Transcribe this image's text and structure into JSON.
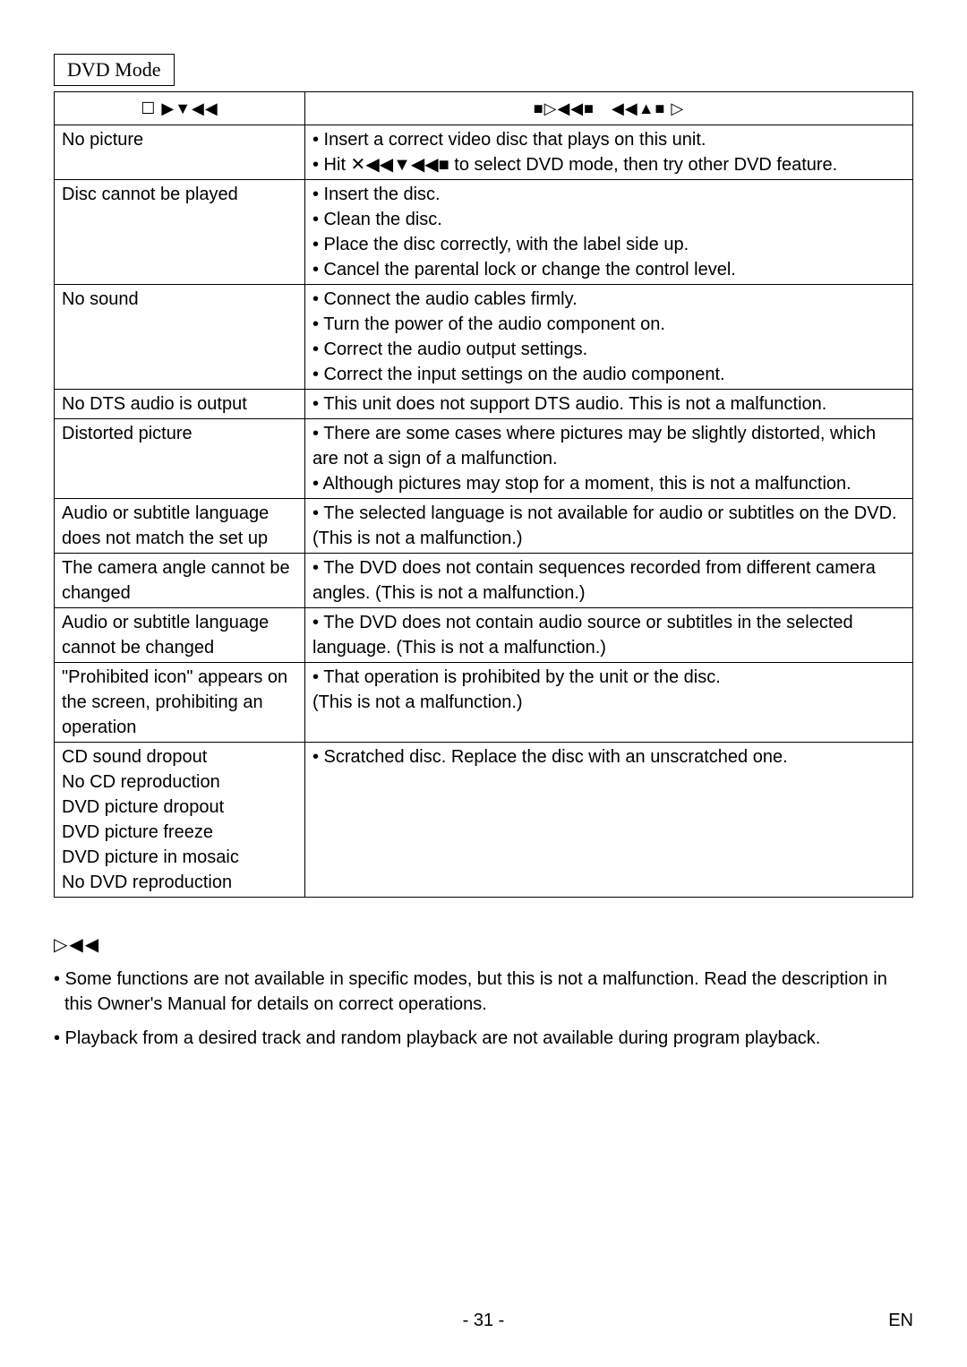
{
  "page": {
    "mode_label": "DVD Mode",
    "table": {
      "headers": {
        "symptom_symbols": "☐ ▶▼◀◀",
        "remedy_symbols": "■▷◀◀■　◀◀▲■ ▷"
      },
      "rows": [
        {
          "symptom": "No picture",
          "remedy": "• Insert a correct video disc that plays on this unit.\n• Hit ✕◀◀▼◀◀■ to select DVD mode, then try other DVD feature."
        },
        {
          "symptom": "Disc cannot be played",
          "remedy": "• Insert the disc.\n• Clean the disc.\n• Place the disc correctly, with the label side up.\n• Cancel the parental lock or change the control level."
        },
        {
          "symptom": "No sound",
          "remedy": "• Connect the audio cables firmly.\n• Turn the power of the audio component on.\n• Correct the audio output settings.\n• Correct the input settings on the audio component."
        },
        {
          "symptom": "No DTS audio is output",
          "remedy": "• This unit does not support DTS audio. This is not a malfunction."
        },
        {
          "symptom": "Distorted picture",
          "remedy": "• There are some cases where pictures may be slightly distorted, which are not a sign of a malfunction.\n• Although pictures may stop for a moment, this is not a malfunction."
        },
        {
          "symptom": "Audio or subtitle language does not match the set up",
          "remedy": "• The selected language is not available for audio or subtitles on the DVD. (This is not a malfunction.)"
        },
        {
          "symptom": "The camera angle cannot be changed",
          "remedy": "• The DVD does not contain sequences recorded from different camera angles. (This is not a malfunction.)"
        },
        {
          "symptom": "Audio or subtitle language cannot be changed",
          "remedy": "• The DVD does not contain audio source or subtitles in the selected language. (This is not a malfunction.)"
        },
        {
          "symptom": "\"Prohibited icon\" appears on the screen, prohibiting an operation",
          "remedy": "• That operation is prohibited by the unit or the disc.\n(This is not a malfunction.)"
        },
        {
          "symptom": "CD sound dropout\nNo CD reproduction\nDVD picture dropout\nDVD picture freeze\nDVD picture in mosaic\nNo DVD reproduction",
          "remedy": "• Scratched disc. Replace the disc with an unscratched one."
        }
      ]
    },
    "notes": {
      "heading_symbols": "▷◀◀",
      "items": [
        "• Some functions are not available in specific modes, but this is not a malfunction. Read the description in this Owner's Manual for details on correct operations.",
        "• Playback from a desired track and random playback are not available during program playback."
      ]
    },
    "footer": {
      "page_number": "- 31 -",
      "lang": "EN"
    }
  }
}
